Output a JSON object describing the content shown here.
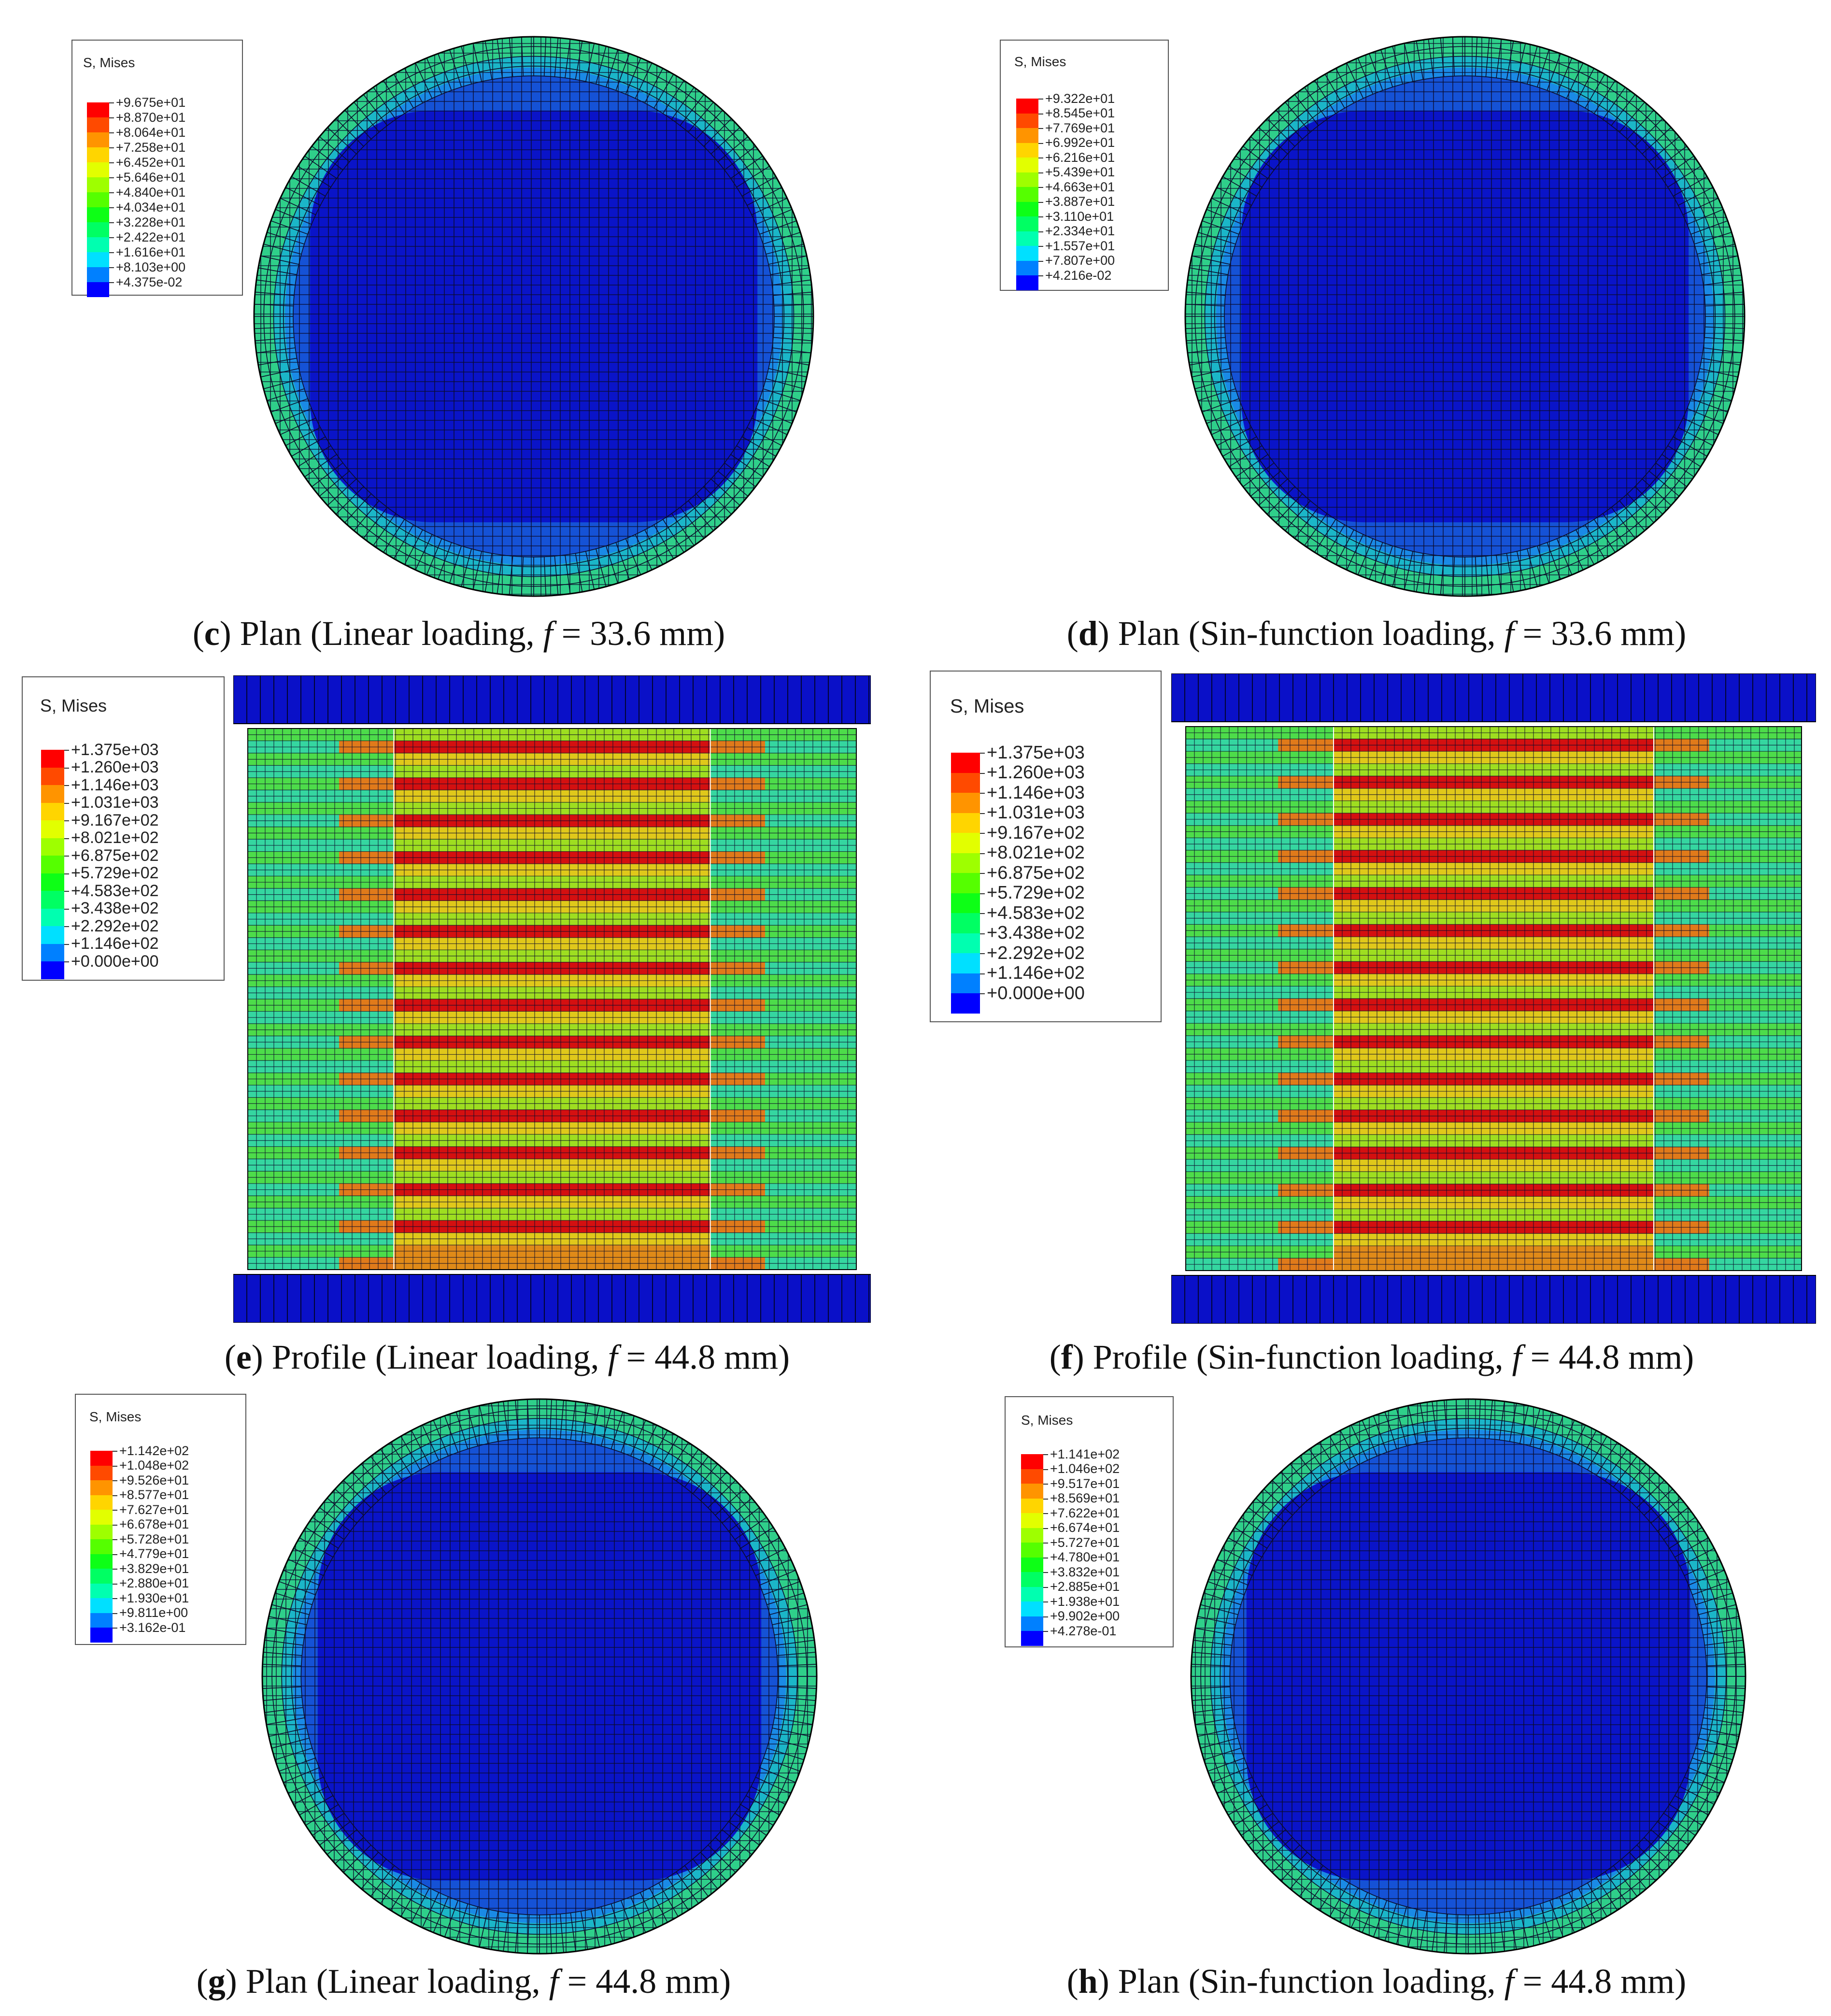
{
  "panels": [
    {
      "id": "c",
      "kind": "plan",
      "caption": {
        "letter": "c",
        "pre": " Plan (Linear loading, ",
        "f": "f",
        "post": " = 33.6 mm)"
      },
      "legend": {
        "title": "S, Mises",
        "values": [
          "+9.675e+01",
          "+8.870e+01",
          "+8.064e+01",
          "+7.258e+01",
          "+6.452e+01",
          "+5.646e+01",
          "+4.840e+01",
          "+4.034e+01",
          "+3.228e+01",
          "+2.422e+01",
          "+1.616e+01",
          "+8.103e+00",
          "+4.375e-02"
        ]
      }
    },
    {
      "id": "d",
      "kind": "plan",
      "caption": {
        "letter": "d",
        "pre": " Plan (Sin-function loading, ",
        "f": "f",
        "post": " = 33.6 mm)"
      },
      "legend": {
        "title": "S, Mises",
        "values": [
          "+9.322e+01",
          "+8.545e+01",
          "+7.769e+01",
          "+6.992e+01",
          "+6.216e+01",
          "+5.439e+01",
          "+4.663e+01",
          "+3.887e+01",
          "+3.110e+01",
          "+2.334e+01",
          "+1.557e+01",
          "+7.807e+00",
          "+4.216e-02"
        ]
      }
    },
    {
      "id": "e",
      "kind": "profile",
      "caption": {
        "letter": "e",
        "pre": " Profile (Linear loading, ",
        "f": "f",
        "post": " = 44.8 mm)"
      },
      "legend": {
        "title": "S, Mises",
        "values": [
          "+1.375e+03",
          "+1.260e+03",
          "+1.146e+03",
          "+1.031e+03",
          "+9.167e+02",
          "+8.021e+02",
          "+6.875e+02",
          "+5.729e+02",
          "+4.583e+02",
          "+3.438e+02",
          "+2.292e+02",
          "+1.146e+02",
          "+0.000e+00"
        ]
      }
    },
    {
      "id": "f",
      "kind": "profile",
      "caption": {
        "letter": "f",
        "pre": " Profile (Sin-function loading, ",
        "f": "f",
        "post": " = 44.8 mm)"
      },
      "legend": {
        "title": "S, Mises",
        "values": [
          "+1.375e+03",
          "+1.260e+03",
          "+1.146e+03",
          "+1.031e+03",
          "+9.167e+02",
          "+8.021e+02",
          "+6.875e+02",
          "+5.729e+02",
          "+4.583e+02",
          "+3.438e+02",
          "+2.292e+02",
          "+1.146e+02",
          "+0.000e+00"
        ]
      }
    },
    {
      "id": "g",
      "kind": "plan",
      "caption": {
        "letter": "g",
        "pre": " Plan (Linear loading, ",
        "f": "f",
        "post": " = 44.8 mm)"
      },
      "legend": {
        "title": "S, Mises",
        "values": [
          "+1.142e+02",
          "+1.048e+02",
          "+9.526e+01",
          "+8.577e+01",
          "+7.627e+01",
          "+6.678e+01",
          "+5.728e+01",
          "+4.779e+01",
          "+3.829e+01",
          "+2.880e+01",
          "+1.930e+01",
          "+9.811e+00",
          "+3.162e-01"
        ]
      }
    },
    {
      "id": "h",
      "kind": "plan",
      "caption": {
        "letter": "h",
        "pre": " Plan (Sin-function loading, ",
        "f": "f",
        "post": " = 44.8 mm)"
      },
      "legend": {
        "title": "S, Mises",
        "values": [
          "+1.141e+02",
          "+1.046e+02",
          "+9.517e+01",
          "+8.569e+01",
          "+7.622e+01",
          "+6.674e+01",
          "+5.727e+01",
          "+4.780e+01",
          "+3.832e+01",
          "+2.885e+01",
          "+1.938e+01",
          "+9.902e+00",
          "+4.278e-01"
        ]
      }
    }
  ],
  "colors": {
    "contour_scale": [
      "#ff0000",
      "#ff4a00",
      "#ff9400",
      "#ffd500",
      "#e2ff00",
      "#9eff00",
      "#55ff00",
      "#0dff16",
      "#00ff63",
      "#00ffb0",
      "#00e0ff",
      "#0080ff",
      "#0000ff"
    ]
  }
}
